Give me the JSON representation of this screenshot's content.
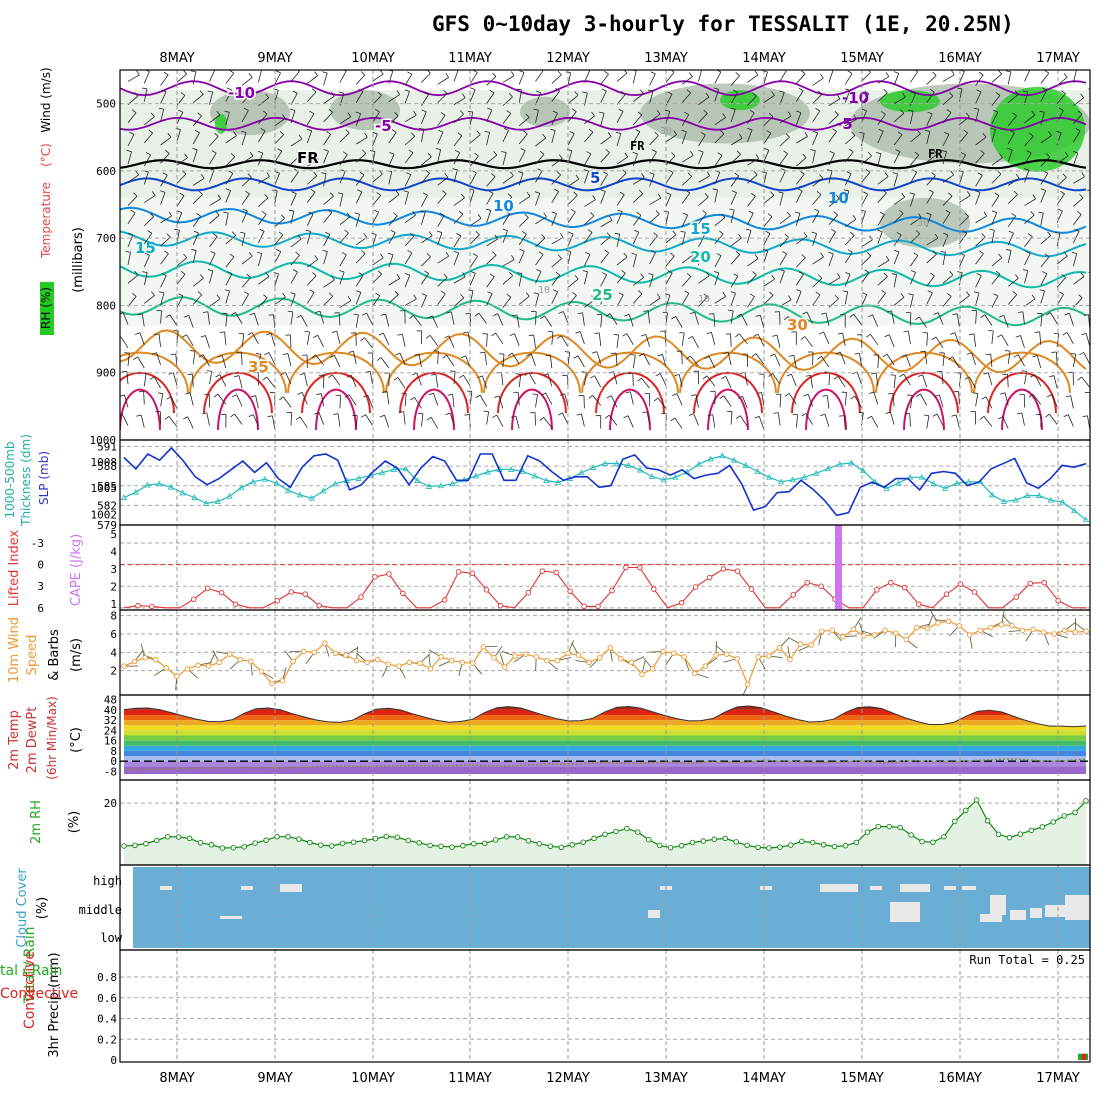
{
  "title": "GFS 0~10day 3-hourly for TESSALIT (1E, 20.25N)",
  "dates": [
    "8MAY",
    "9MAY",
    "10MAY",
    "11MAY",
    "12MAY",
    "13MAY",
    "14MAY",
    "15MAY",
    "16MAY",
    "17MAY"
  ],
  "chart_data": [
    {
      "type": "line",
      "panel": "upper-air",
      "ylabel_parts": [
        "RH (%)",
        "Temperature (°C)",
        "Wind (m/s)",
        "(millibars)"
      ],
      "ylabel_text": {
        "rh": "RH (%)",
        "temp": "Temperature",
        "degc": "(°C)",
        "wind": "Wind (m/s)",
        "mb": "(millibars)"
      },
      "y_ticks": [
        500,
        600,
        700,
        800,
        900,
        1000
      ],
      "ylim": [
        450,
        1000
      ],
      "y_scale": "inverted",
      "isotherm_labels": [
        "-10",
        "-5",
        "FR",
        "5",
        "10",
        "15",
        "20",
        "25",
        "30",
        "35"
      ],
      "rh_contour_labels": [
        "30",
        "10"
      ],
      "colors": {
        "cold": "#8800aa",
        "freezing": "#000000",
        "cool": "#1144cc",
        "mild": "#11aacc",
        "warm": "#22bb88",
        "hot": "#dd8822",
        "veryhot": "#dd2222",
        "rh_low": "#e8f0e8",
        "rh_mid": "#a8b8a8",
        "rh_high": "#22cc22"
      }
    },
    {
      "type": "line",
      "panel": "thickness-slp",
      "ylabel_text": {
        "thick1": "1000-500mb",
        "thick2": "Thickness (dm)",
        "slp": "SLP (mb)"
      },
      "left_ticks": [
        "579",
        "582",
        "585",
        "588",
        "591"
      ],
      "right_ticks": [
        "1002",
        "1005",
        "1008"
      ],
      "series": [
        {
          "name": "SLP (mb)",
          "color": "#1133cc",
          "values": [
            1008.5,
            1007.2,
            1008.9,
            1008.2,
            1009.6,
            1008.1,
            1006.3,
            1005.4,
            1006.1,
            1007.1,
            1008.1,
            1006.8,
            1007.9,
            1006.1,
            1005.1,
            1007.4,
            1008.7,
            1008.9,
            1008.2,
            1004.8,
            1005.4,
            1006.9,
            1008.1,
            1007.3,
            1005.4,
            1007.3,
            1008.6,
            1008.1,
            1005.9,
            1005.9,
            1008.9,
            1008.9,
            1005.9,
            1005.9,
            1008.7,
            1008.1,
            1006.9,
            1005.9,
            1006.3,
            1006.3,
            1005.1,
            1005.3,
            1008.3,
            1008.8,
            1007.3,
            1007.1,
            1006.5,
            1007.1,
            1006.1,
            1006.5,
            1006.7,
            1007.6,
            1005.5,
            1002.5,
            1002.9,
            1004.5,
            1004.6,
            1005.9,
            1004.9,
            1003.6,
            1001.9,
            1002.2,
            1005.1,
            1005.7,
            1005.1,
            1006.1,
            1006.1,
            1004.8,
            1006.7,
            1006.9,
            1006.7,
            1005.3,
            1005.7,
            1007.2,
            1007.8,
            1008.4,
            1005.6,
            1005.0,
            1006.1,
            1007.6,
            1007.4,
            1007.8
          ]
        },
        {
          "name": "1000-500mb Thickness (dm)",
          "color": "#22bbbb",
          "values": [
            583.2,
            584.0,
            585.1,
            585.3,
            584.8,
            583.9,
            583.2,
            582.3,
            582.6,
            583.4,
            584.7,
            585.6,
            586.0,
            585.4,
            584.3,
            583.6,
            583.1,
            584.2,
            585.3,
            585.8,
            586.1,
            586.6,
            587.0,
            587.5,
            587.6,
            585.8,
            584.9,
            585.0,
            585.3,
            585.9,
            586.5,
            587.1,
            587.5,
            587.5,
            587.2,
            586.5,
            585.8,
            585.5,
            586.1,
            587.0,
            587.8,
            588.4,
            588.4,
            588.1,
            587.4,
            586.4,
            585.9,
            586.3,
            587.1,
            588.3,
            589.1,
            589.6,
            588.9,
            588.1,
            587.2,
            586.3,
            585.6,
            585.9,
            586.3,
            586.9,
            587.6,
            588.3,
            588.5,
            587.3,
            585.6,
            584.6,
            585.4,
            586.3,
            586.3,
            585.3,
            584.6,
            585.4,
            585.6,
            585.6,
            583.6,
            582.6,
            582.8,
            583.5,
            583.5,
            582.8,
            582.5,
            581.2,
            579.8
          ]
        }
      ]
    },
    {
      "type": "line",
      "panel": "lifted-index-cape",
      "ylabel_text": {
        "li": "Lifted Index",
        "cape": "CAPE (J/kg)"
      },
      "left_ticks": [
        "-3",
        "0",
        "3",
        "6"
      ],
      "right_ticks": [
        "1",
        "2",
        "3",
        "4",
        "5"
      ],
      "series": [
        {
          "name": "Lifted Index",
          "color": "#dd3333",
          "values": [
            6.0,
            5.7,
            5.8,
            6.0,
            6.0,
            4.8,
            3.3,
            3.9,
            5.5,
            6.0,
            6.0,
            5.0,
            3.8,
            4.1,
            5.7,
            6.0,
            6.0,
            4.5,
            1.7,
            1.3,
            4.0,
            6.0,
            6.0,
            4.9,
            1.0,
            1.2,
            3.5,
            5.7,
            6.0,
            3.9,
            0.9,
            1.1,
            3.7,
            5.8,
            5.8,
            3.6,
            0.4,
            0.4,
            3.4,
            6.0,
            5.3,
            3.1,
            1.8,
            0.6,
            0.9,
            3.4,
            6.0,
            6.0,
            4.2,
            2.5,
            3.0,
            4.8,
            6.0,
            6.0,
            3.5,
            2.5,
            3.2,
            5.5,
            6.0,
            4.1,
            2.7,
            3.8,
            6.0,
            6.0,
            4.5,
            2.6,
            2.5,
            5.0,
            6.0,
            6.0
          ]
        },
        {
          "name": "CAPE (J/kg)",
          "color": "#cc77ee",
          "values": [
            0,
            0,
            0,
            0,
            0,
            0,
            0,
            0,
            0,
            0,
            0,
            0,
            0,
            0,
            0,
            0,
            0,
            0,
            0,
            0,
            0,
            0,
            0,
            0,
            0,
            0,
            0,
            0,
            0,
            0,
            0,
            0,
            0,
            0,
            0,
            0,
            0,
            0,
            0,
            0,
            0,
            0,
            0,
            0,
            0,
            0,
            5,
            0,
            0,
            0,
            0,
            0,
            0,
            0,
            0,
            0,
            0,
            0,
            0,
            0,
            0,
            0,
            0,
            0,
            0,
            0,
            0,
            0,
            0,
            0
          ]
        }
      ]
    },
    {
      "type": "line",
      "panel": "10m-wind",
      "ylabel_text": {
        "l1": "10m Wind",
        "l2": "Speed",
        "l3": "& Barbs",
        "unit": "(m/s)"
      },
      "y_ticks": [
        "2",
        "4",
        "6",
        "8"
      ],
      "ylim": [
        0,
        8
      ],
      "series": [
        {
          "name": "10m Wind Speed",
          "color": "#ee9933",
          "values": [
            2.5,
            3.0,
            3.4,
            3.2,
            2.3,
            1.4,
            2.2,
            2.6,
            2.5,
            2.9,
            3.8,
            3.2,
            3.0,
            1.9,
            0.6,
            0.9,
            3.0,
            4.1,
            4.0,
            5.0,
            3.9,
            3.7,
            3.1,
            2.9,
            3.2,
            2.7,
            2.5,
            2.9,
            2.8,
            2.2,
            3.5,
            3.1,
            2.9,
            2.8,
            4.6,
            3.4,
            2.4,
            3.6,
            3.8,
            3.5,
            3.1,
            3.1,
            3.9,
            3.7,
            2.9,
            3.4,
            4.5,
            3.3,
            2.9,
            1.6,
            2.2,
            4.1,
            3.9,
            3.5,
            1.7,
            2.5,
            3.7,
            3.8,
            3.3,
            0.5,
            3.5,
            3.6,
            4.5,
            3.2,
            4.9,
            4.8,
            6.3,
            6.4,
            5.7,
            6.5,
            5.8,
            5.9,
            6.4,
            6.1,
            5.4,
            6.7,
            6.6,
            7.2,
            7.4,
            6.9,
            5.9,
            6.4,
            6.7,
            7.0,
            6.9,
            6.4,
            6.5,
            6.2,
            6.0,
            6.4,
            6.2,
            6.3
          ]
        }
      ]
    },
    {
      "type": "area",
      "panel": "2m-temp",
      "ylabel_text": {
        "l1": "2m Temp",
        "l2": "2m DewPt",
        "l3": "(6hr Min/Max)",
        "unit": "(°C)"
      },
      "y_ticks": [
        "-8",
        "0",
        "8",
        "16",
        "24",
        "32",
        "40",
        "48"
      ],
      "ylim": [
        -10,
        50
      ],
      "series": [
        {
          "name": "2m Temp",
          "values": [
            40.2,
            41.3,
            41.4,
            40.0,
            37.6,
            35.1,
            32.8,
            31.0,
            30.7,
            32.2,
            37.4,
            40.9,
            41.4,
            40.0,
            37.0,
            34.4,
            32.1,
            30.6,
            30.4,
            31.9,
            36.8,
            40.6,
            41.3,
            39.9,
            36.9,
            34.3,
            31.9,
            30.4,
            30.9,
            32.7,
            37.9,
            41.7,
            42.5,
            41.4,
            38.4,
            35.6,
            33.0,
            31.3,
            31.6,
            33.5,
            38.5,
            42.0,
            42.6,
            41.3,
            38.3,
            35.5,
            33.1,
            31.4,
            31.6,
            33.3,
            38.3,
            42.3,
            43.0,
            41.6,
            38.4,
            35.2,
            32.5,
            30.5,
            30.9,
            32.7,
            38.0,
            41.8,
            42.4,
            41.0,
            37.3,
            33.6,
            30.8,
            28.6,
            28.6,
            30.2,
            35.0,
            38.9,
            39.6,
            38.3,
            34.9,
            31.7,
            29.2,
            27.3,
            27.3,
            26.8,
            27.4
          ]
        },
        {
          "name": "2m DewPt",
          "values": [
            -6.3,
            -6.5,
            -6.4,
            -6.0,
            -5.8,
            -5.6,
            -5.4,
            -5.3,
            -5.2,
            -5.1,
            -5.1,
            -5.1,
            -5.4,
            -4.8,
            -4.5,
            -4.0,
            -3.8,
            -4.2,
            -4.3,
            -4.1,
            -3.8,
            -3.5,
            -3.4,
            -3.7,
            -3.9,
            -3.2,
            -3.1,
            -3.5,
            -4.0,
            -3.7,
            -3.0,
            -2.6,
            -2.0,
            -2.6,
            -2.3,
            -1.5,
            -0.9,
            -1.5,
            -1.9,
            -1.5,
            -1.0,
            -0.8,
            -1.6,
            -1.1,
            -0.3,
            -0.9,
            -1.1,
            -0.5,
            0.9,
            -0.3,
            -0.4,
            -0.6,
            -1.0,
            -0.7,
            -0.6,
            0.2,
            -0.6,
            -1.3,
            -0.4,
            0.5,
            0.0,
            -0.6,
            -0.6,
            0.1,
            0.7,
            1.1,
            1.8,
            1.7,
            0.7,
            0.2,
            0.1,
            0.8,
            1.5
          ]
        }
      ]
    },
    {
      "type": "line",
      "panel": "2m-rh",
      "ylabel_text": {
        "l1": "2m RH",
        "unit": "(%)"
      },
      "y_ticks": [
        "20"
      ],
      "ylim": [
        0,
        28
      ],
      "series": [
        {
          "name": "2m RH",
          "color": "#118811",
          "values": [
            5.2,
            5.4,
            6.0,
            7.1,
            8.4,
            8.3,
            7.8,
            6.3,
            5.6,
            4.5,
            4.6,
            4.9,
            6.2,
            7.2,
            8.4,
            8.4,
            7.6,
            6.4,
            5.5,
            5.2,
            6.1,
            6.5,
            7.1,
            7.7,
            8.5,
            8.2,
            7.1,
            6.3,
            5.4,
            5.1,
            4.8,
            5.3,
            6.0,
            6.1,
            7.3,
            8.4,
            8.3,
            7.0,
            6.0,
            5.1,
            4.7,
            5.6,
            6.5,
            7.8,
            9.2,
            10.2,
            11.2,
            10.0,
            7.4,
            5.4,
            4.6,
            5.3,
            6.4,
            6.9,
            7.5,
            7.8,
            6.6,
            5.4,
            4.7,
            4.5,
            4.8,
            5.5,
            6.8,
            6.4,
            5.6,
            5.0,
            5.3,
            6.4,
            10.0,
            11.9,
            11.9,
            11.6,
            9.0,
            6.7,
            6.5,
            8.4,
            13.7,
            17.5,
            21.1,
            13.9,
            9.2,
            8.1,
            9.3,
            10.6,
            11.8,
            13.5,
            15.6,
            16.8,
            20.8
          ]
        }
      ]
    },
    {
      "type": "bar",
      "panel": "cloud-cover",
      "ylabel_text": {
        "l1": "Cloud Cover",
        "unit": "(%)"
      },
      "row_labels": [
        "high",
        "middle",
        "low"
      ],
      "colors": {
        "clear": "#6aaed6",
        "cloud": "#e8e8e8"
      }
    },
    {
      "type": "bar",
      "panel": "precip",
      "ylabel_text": {
        "l1": "Total / Rain",
        "l2": "Convective",
        "unit": "3hr Precip (mm)"
      },
      "y_ticks": [
        "0",
        "0.2",
        "0.4",
        "0.6",
        "0.8"
      ],
      "ylim": [
        0,
        1
      ],
      "run_total": "Run Total = 0.25",
      "series": [
        {
          "name": "Total / Rain",
          "color": "#22aa22",
          "last_value": 0.06
        },
        {
          "name": "Convective",
          "color": "#dd2222",
          "last_value": 0.06
        }
      ]
    }
  ]
}
